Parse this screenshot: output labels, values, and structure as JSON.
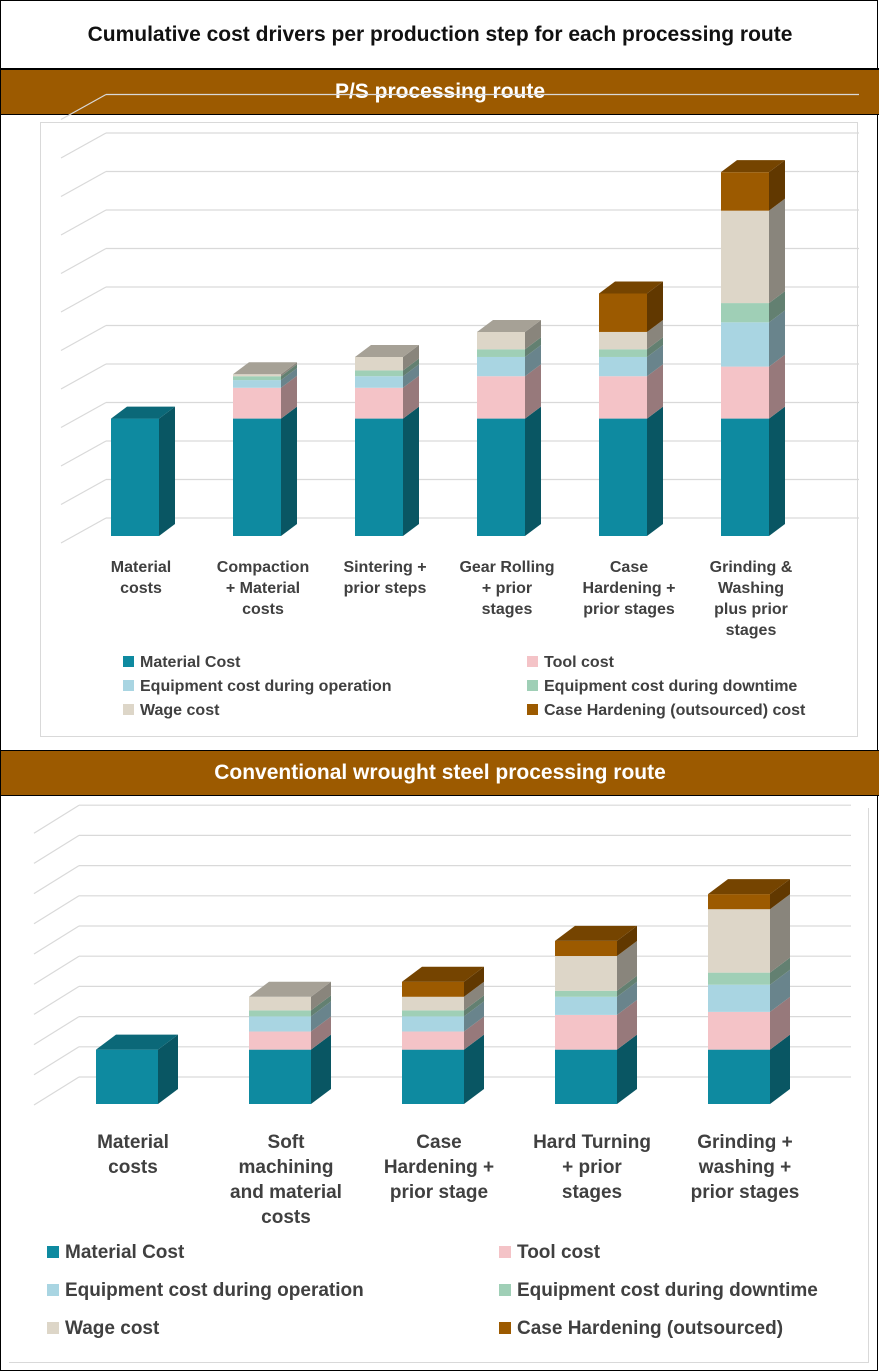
{
  "title": "Cumulative cost drivers per production step for each processing route",
  "colors": {
    "band": "#9c5a00",
    "material": "#0e8aa0",
    "tool": "#f4c3c7",
    "equip_op": "#a9d5e2",
    "equip_down": "#9fcfb6",
    "wage": "#ddd6c8",
    "case": "#9c5a00",
    "grid": "#d9d9d9"
  },
  "sections": [
    {
      "heading": "P/S processing route",
      "chart_data": {
        "type": "bar",
        "stacked": true,
        "three_d": true,
        "grid": true,
        "legend_position": "bottom",
        "ylim": [
          0,
          11
        ],
        "categories": [
          "Material\ncosts",
          "Compaction\n+ Material\ncosts",
          "Sintering +\nprior steps",
          "Gear Rolling\n+ prior\nstages",
          "Case\nHardening +\nprior stages",
          "Grinding &\nWashing\nplus prior\nstages"
        ],
        "series": [
          {
            "name": "Material Cost",
            "values": [
              3.05,
              3.05,
              3.05,
              3.05,
              3.05,
              3.05
            ]
          },
          {
            "name": "Tool cost",
            "values": [
              0,
              0.8,
              0.8,
              1.1,
              1.1,
              1.35
            ]
          },
          {
            "name": "Equipment cost during operation",
            "values": [
              0,
              0.2,
              0.3,
              0.5,
              0.5,
              1.15
            ]
          },
          {
            "name": "Equipment cost during downtime",
            "values": [
              0,
              0.1,
              0.15,
              0.2,
              0.2,
              0.5
            ]
          },
          {
            "name": "Wage cost",
            "values": [
              0,
              0.05,
              0.35,
              0.45,
              0.45,
              2.4
            ]
          },
          {
            "name": "Case Hardening (outsourced) cost",
            "values": [
              0,
              0,
              0,
              0,
              1.0,
              1.0
            ]
          }
        ]
      }
    },
    {
      "heading": "Conventional wrought steel processing route",
      "chart_data": {
        "type": "bar",
        "stacked": true,
        "three_d": true,
        "grid": true,
        "legend_position": "bottom",
        "ylim": [
          0,
          9
        ],
        "categories": [
          "Material\ncosts",
          "Soft\nmachining\nand material\ncosts",
          "Case\nHardening +\nprior stage",
          "Hard Turning\n+ prior\nstages",
          "Grinding +\nwashing +\nprior stages"
        ],
        "series": [
          {
            "name": "Material Cost",
            "values": [
              1.8,
              1.8,
              1.8,
              1.8,
              1.8
            ]
          },
          {
            "name": "Tool cost",
            "values": [
              0,
              0.6,
              0.6,
              1.15,
              1.25
            ]
          },
          {
            "name": "Equipment cost during operation",
            "values": [
              0,
              0.5,
              0.5,
              0.6,
              0.9
            ]
          },
          {
            "name": "Equipment cost during downtime",
            "values": [
              0,
              0.2,
              0.2,
              0.2,
              0.4
            ]
          },
          {
            "name": "Wage cost",
            "values": [
              0,
              0.45,
              0.45,
              1.15,
              2.1
            ]
          },
          {
            "name": "Case Hardening (outsourced)",
            "values": [
              0,
              0,
              0.5,
              0.5,
              0.5
            ]
          }
        ]
      }
    }
  ]
}
